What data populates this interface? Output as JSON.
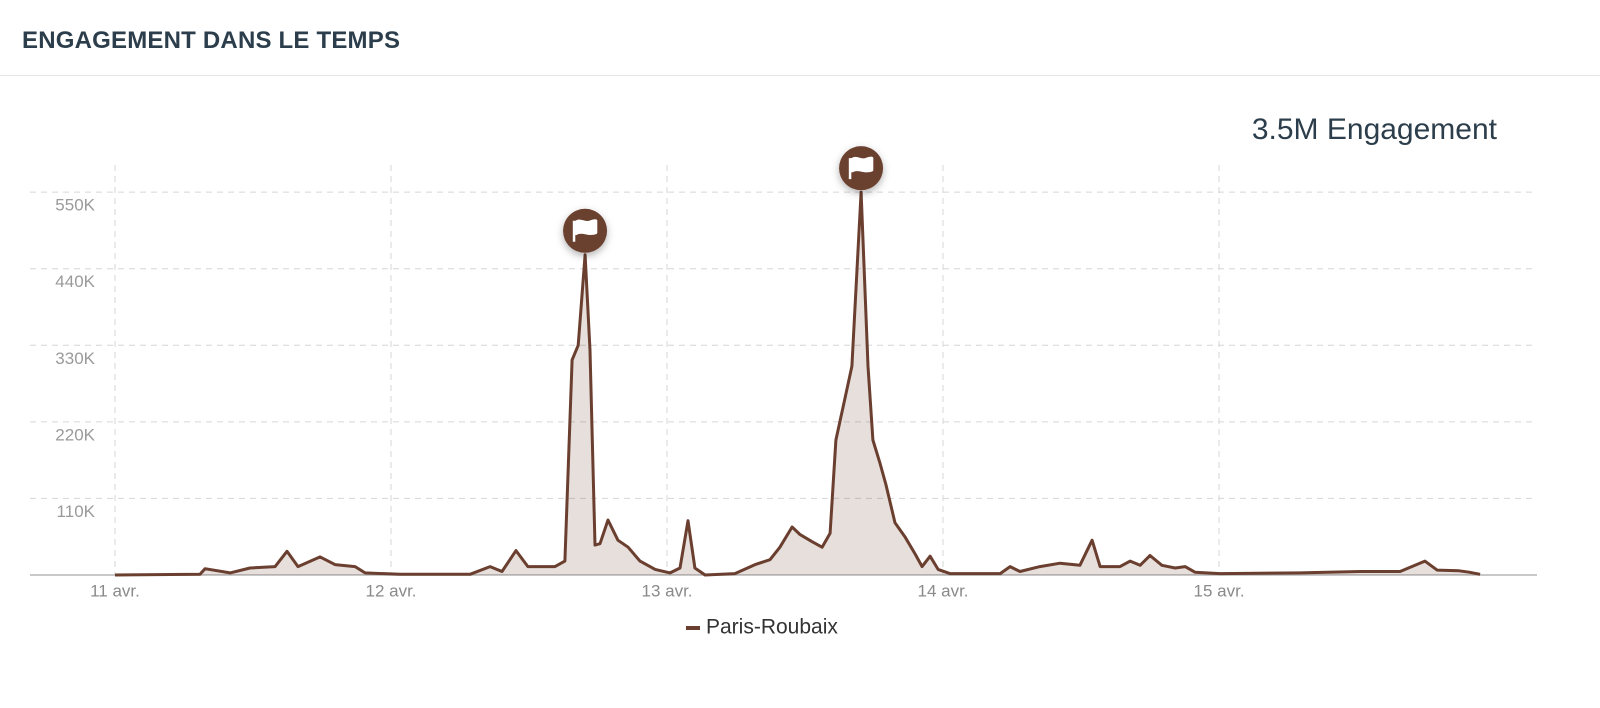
{
  "header": {
    "title": "ENGAGEMENT DANS LE TEMPS"
  },
  "chart_data": {
    "type": "area",
    "summary": "3.5M Engagement",
    "x": [
      0,
      0.308,
      0.326,
      0.417,
      0.489,
      0.58,
      0.623,
      0.663,
      0.743,
      0.797,
      0.87,
      0.906,
      1.033,
      1.286,
      1.359,
      1.402,
      1.453,
      1.496,
      1.594,
      1.63,
      1.656,
      1.678,
      1.703,
      1.721,
      1.739,
      1.757,
      1.786,
      1.822,
      1.859,
      1.902,
      1.957,
      2.011,
      2.047,
      2.076,
      2.101,
      2.138,
      2.246,
      2.319,
      2.373,
      2.409,
      2.453,
      2.482,
      2.525,
      2.562,
      2.591,
      2.612,
      2.645,
      2.67,
      2.703,
      2.728,
      2.746,
      2.772,
      2.793,
      2.826,
      2.862,
      2.899,
      2.924,
      2.953,
      2.982,
      3.025,
      3.207,
      3.243,
      3.279,
      3.351,
      3.424,
      3.496,
      3.54,
      3.569,
      3.641,
      3.678,
      3.714,
      3.75,
      3.793,
      3.841,
      3.877,
      3.913,
      4.004,
      4.293,
      4.511,
      4.656,
      4.746,
      4.79,
      4.87,
      4.906,
      4.946
    ],
    "series": [
      {
        "name": "Paris-Roubaix",
        "color": "#6b3f2f",
        "values": [
          0,
          1000,
          9000,
          3000,
          10000,
          12000,
          34000,
          12000,
          26000,
          15000,
          12000,
          3000,
          1000,
          1000,
          12000,
          5000,
          35000,
          12000,
          12000,
          20000,
          309000,
          330000,
          460000,
          323000,
          43000,
          45000,
          79000,
          50000,
          40000,
          20000,
          8000,
          3000,
          10000,
          78000,
          10000,
          0,
          2000,
          15000,
          22000,
          40000,
          69000,
          58000,
          48000,
          40000,
          60000,
          194000,
          254000,
          300000,
          550000,
          300000,
          194000,
          160000,
          130000,
          75000,
          55000,
          30000,
          12000,
          27000,
          8000,
          2000,
          2000,
          12000,
          5000,
          12000,
          17000,
          14000,
          50000,
          12000,
          12000,
          20000,
          14000,
          28000,
          14000,
          10000,
          12000,
          4000,
          2000,
          3000,
          5000,
          5000,
          20000,
          7000,
          6000,
          4000,
          1000
        ]
      }
    ],
    "flags": [
      1.703,
      2.703
    ],
    "xlim": [
      -0.308,
      5.152
    ],
    "xticks": [
      {
        "value": 0,
        "label": "11 avr."
      },
      {
        "value": 1,
        "label": "12 avr."
      },
      {
        "value": 2,
        "label": "13 avr."
      },
      {
        "value": 3,
        "label": "14 avr."
      },
      {
        "value": 4,
        "label": "15 avr."
      }
    ],
    "ylim": [
      0,
      589000
    ],
    "yticks": [
      {
        "value": 110000,
        "label": "110K"
      },
      {
        "value": 220000,
        "label": "220K"
      },
      {
        "value": 330000,
        "label": "330K"
      },
      {
        "value": 440000,
        "label": "440K"
      },
      {
        "value": 550000,
        "label": "550K"
      }
    ],
    "grid": true
  }
}
